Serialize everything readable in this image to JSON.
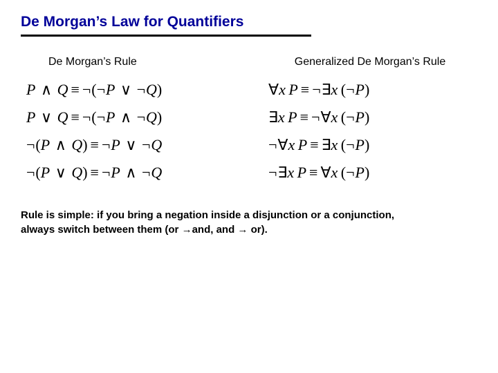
{
  "colors": {
    "title": "#000099",
    "text": "#000000",
    "underline": "#000000",
    "background": "#ffffff"
  },
  "title": "De Morgan’s Law for Quantifiers",
  "left": {
    "header": "De Morgan’s Rule",
    "formulas": [
      {
        "lhs": [
          "P",
          "∧",
          "Q"
        ],
        "rhs_neg": false,
        "rhs": [
          "¬",
          "P",
          "∨",
          "¬",
          "Q"
        ],
        "lhs_neg": false
      },
      {
        "lhs": [
          "P",
          "∨",
          "Q"
        ],
        "rhs_neg": false,
        "rhs": [
          "¬",
          "P",
          "∧",
          "¬",
          "Q"
        ],
        "lhs_neg": false
      },
      {
        "lhs": [
          "P",
          "∧",
          "Q"
        ],
        "rhs_neg": false,
        "rhs_plain": [
          "¬",
          "P",
          "∨",
          "¬",
          "Q"
        ],
        "lhs_neg": true
      },
      {
        "lhs": [
          "P",
          "∨",
          "Q"
        ],
        "rhs_neg": false,
        "rhs_plain": [
          "¬",
          "P",
          "∧",
          "¬",
          "Q"
        ],
        "lhs_neg": true
      }
    ]
  },
  "right": {
    "header": "Generalized De Morgan’s Rule",
    "formulas": [
      {
        "q1": "∀",
        "neg1": false,
        "q2": "∃",
        "neg2": true
      },
      {
        "q1": "∃",
        "neg1": false,
        "q2": "∀",
        "neg2": true
      },
      {
        "q1": "∀",
        "neg1": true,
        "q2": "∃",
        "neg2": false
      },
      {
        "q1": "∃",
        "neg1": true,
        "q2": "∀",
        "neg2": false
      }
    ]
  },
  "footer": {
    "line1": "Rule is simple: if you bring a negation inside a disjunction or a conjunction,",
    "line2_a": "always switch between them (or ",
    "line2_b": "and, and ",
    "line2_c": " or).",
    "arrow": "→"
  },
  "typography": {
    "title_fontsize": 21,
    "header_fontsize": 16,
    "formula_fontsize": 22,
    "footer_fontsize": 15
  }
}
